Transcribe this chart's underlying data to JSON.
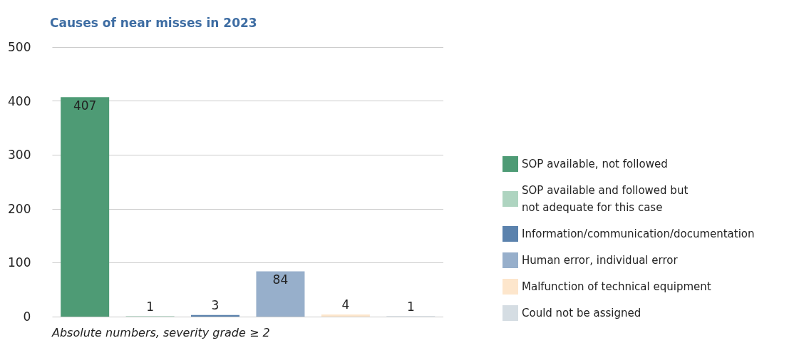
{
  "chart_data": {
    "type": "bar",
    "title": "Causes of near misses in 2023",
    "categories": [
      null,
      null,
      null,
      null,
      null,
      null
    ],
    "series": [
      {
        "name": "SOP available, not followed",
        "color": "#4e9b75",
        "values": [
          407,
          null,
          null,
          null,
          null,
          null
        ]
      },
      {
        "name": "SOP available and followed but not adequate for this case",
        "color": "#aed4c0",
        "values": [
          null,
          1,
          null,
          null,
          null,
          null
        ]
      },
      {
        "name": "Information/communication/documentation",
        "color": "#5b82ad",
        "values": [
          null,
          null,
          3,
          null,
          null,
          null
        ]
      },
      {
        "name": "Human error, individual error",
        "color": "#97afcb",
        "values": [
          null,
          null,
          null,
          84,
          null,
          null
        ]
      },
      {
        "name": "Malfunction of technical equipment",
        "color": "#fde6cc",
        "values": [
          null,
          null,
          null,
          null,
          4,
          null
        ]
      },
      {
        "name": "Could not be assigned",
        "color": "#d5dde3",
        "values": [
          null,
          null,
          null,
          null,
          null,
          1
        ]
      }
    ],
    "ylim": [
      0,
      500
    ],
    "yticks": [
      0,
      100,
      200,
      300,
      400,
      500
    ],
    "grid": "y",
    "legend": "right",
    "tick_labels": "y",
    "data_labels": true,
    "annotations": [
      "Absolute numbers, severity grade ≥ 2"
    ]
  }
}
